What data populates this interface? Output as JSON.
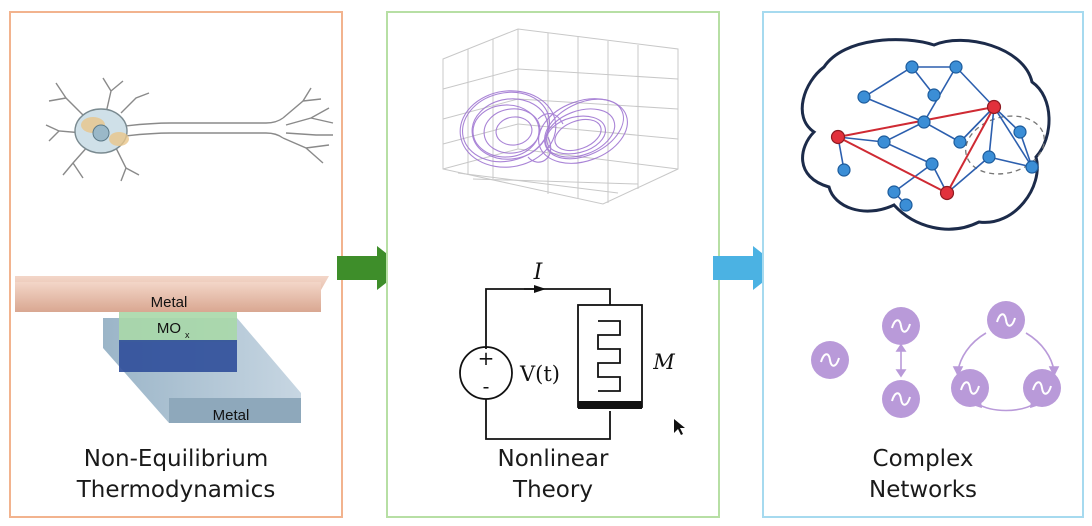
{
  "panels": [
    {
      "caption_line1": "Non-Equilibrium",
      "caption_line2": "Thermodynamics"
    },
    {
      "caption_line1": "Nonlinear",
      "caption_line2": "Theory"
    },
    {
      "caption_line1": "Complex",
      "caption_line2": "Networks"
    }
  ],
  "device": {
    "top_label": "Metal",
    "middle_label": "MO",
    "middle_subscript": "x",
    "bottom_label": "Metal"
  },
  "circuit": {
    "current_label": "I",
    "voltage_label": "V(t)",
    "memristor_label": "M",
    "plus": "+",
    "minus": "-"
  },
  "colors": {
    "panel1_border": "#f2b38e",
    "panel2_border": "#b7dfa4",
    "panel3_border": "#a6daef",
    "arrow_green": "#3e8e2a",
    "arrow_blue": "#4bb2e3",
    "attractor": "#9b6fd0",
    "network_node": "#3b8ed6",
    "hub_node": "#e2313c",
    "oscillator": "#b99ad9"
  },
  "icons": [
    "neuron-icon",
    "lorenz-attractor-icon",
    "memristor-circuit-icon",
    "brain-network-icon",
    "oscillator-icon"
  ]
}
